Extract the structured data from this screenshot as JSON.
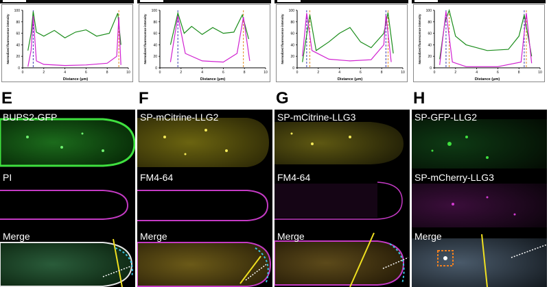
{
  "figure": {
    "scale_bars": [
      1,
      2,
      3,
      4
    ],
    "plots": [
      {
        "id": "plot-A",
        "chart_data": {
          "type": "line",
          "ylabel": "Normalized fluorescence intensity",
          "xlabel": "Distance (μm)",
          "xlim": [
            0,
            10
          ],
          "ylim": [
            0,
            100
          ],
          "x_ticks": [
            "0",
            "2",
            "4",
            "6",
            "8",
            "10"
          ],
          "y_ticks": [
            "0",
            "20",
            "40",
            "60",
            "80",
            "100"
          ],
          "series": [
            {
              "color": "#1a8c1a",
              "values": [
                [
                  0.5,
                  30
                ],
                [
                  0.8,
                  60
                ],
                [
                  1.0,
                  98
                ],
                [
                  1.3,
                  62
                ],
                [
                  2,
                  55
                ],
                [
                  3,
                  65
                ],
                [
                  4,
                  52
                ],
                [
                  5,
                  62
                ],
                [
                  6,
                  66
                ],
                [
                  7,
                  55
                ],
                [
                  8.2,
                  60
                ],
                [
                  9.0,
                  95
                ],
                [
                  9.3,
                  40
                ]
              ]
            },
            {
              "color": "#d020d0",
              "values": [
                [
                  0.5,
                  2
                ],
                [
                  0.8,
                  30
                ],
                [
                  1.0,
                  90
                ],
                [
                  1.3,
                  12
                ],
                [
                  2,
                  6
                ],
                [
                  4,
                  4
                ],
                [
                  6,
                  5
                ],
                [
                  8,
                  8
                ],
                [
                  8.9,
                  20
                ],
                [
                  9.1,
                  88
                ],
                [
                  9.3,
                  5
                ]
              ]
            }
          ],
          "markers": [
            1.0,
            9.1
          ]
        }
      },
      {
        "id": "plot-B",
        "chart_data": {
          "type": "line",
          "ylabel": "Normalized fluorescence intensity",
          "xlabel": "Distance (μm)",
          "xlim": [
            0,
            10
          ],
          "ylim": [
            0,
            100
          ],
          "x_ticks": [
            "0",
            "2",
            "4",
            "6",
            "8",
            "10"
          ],
          "y_ticks": [
            "0",
            "20",
            "40",
            "60",
            "80",
            "100"
          ],
          "series": [
            {
              "color": "#1a8c1a",
              "values": [
                [
                  1,
                  40
                ],
                [
                  1.7,
                  95
                ],
                [
                  2.3,
                  60
                ],
                [
                  3,
                  72
                ],
                [
                  4,
                  58
                ],
                [
                  5,
                  70
                ],
                [
                  6,
                  60
                ],
                [
                  7,
                  62
                ],
                [
                  7.8,
                  92
                ],
                [
                  8.4,
                  50
                ]
              ]
            },
            {
              "color": "#d020d0",
              "values": [
                [
                  1,
                  10
                ],
                [
                  1.7,
                  90
                ],
                [
                  2.4,
                  25
                ],
                [
                  4,
                  12
                ],
                [
                  6,
                  10
                ],
                [
                  7.3,
                  25
                ],
                [
                  7.9,
                  88
                ],
                [
                  8.5,
                  12
                ]
              ]
            }
          ],
          "markers": [
            1.7,
            7.9
          ]
        }
      },
      {
        "id": "plot-C",
        "chart_data": {
          "type": "line",
          "ylabel": "Normalized fluorescence intensity",
          "xlabel": "Distance (μm)",
          "xlim": [
            0,
            10
          ],
          "ylim": [
            0,
            100
          ],
          "x_ticks": [
            "0",
            "2",
            "4",
            "6",
            "8",
            "10"
          ],
          "y_ticks": [
            "0",
            "20",
            "40",
            "60",
            "80",
            "100"
          ],
          "series": [
            {
              "color": "#1a8c1a",
              "values": [
                [
                  0.5,
                  10
                ],
                [
                  1.2,
                  92
                ],
                [
                  1.8,
                  30
                ],
                [
                  3,
                  45
                ],
                [
                  4,
                  60
                ],
                [
                  5,
                  70
                ],
                [
                  6,
                  45
                ],
                [
                  7,
                  35
                ],
                [
                  8.2,
                  60
                ],
                [
                  8.6,
                  96
                ],
                [
                  9.1,
                  25
                ]
              ]
            },
            {
              "color": "#d020d0",
              "values": [
                [
                  0.5,
                  20
                ],
                [
                  0.9,
                  95
                ],
                [
                  1.4,
                  30
                ],
                [
                  3,
                  15
                ],
                [
                  5,
                  12
                ],
                [
                  7,
                  14
                ],
                [
                  8.2,
                  40
                ],
                [
                  8.4,
                  92
                ],
                [
                  8.9,
                  10
                ]
              ]
            }
          ],
          "markers": [
            0.9,
            1.2,
            8.4,
            8.6
          ]
        }
      },
      {
        "id": "plot-D",
        "chart_data": {
          "type": "line",
          "ylabel": "Normalized fluorescence intensity",
          "xlabel": "Distance (μm)",
          "xlim": [
            0,
            10
          ],
          "ylim": [
            0,
            100
          ],
          "x_ticks": [
            "0",
            "2",
            "4",
            "6",
            "8",
            "10"
          ],
          "y_ticks": [
            "0",
            "20",
            "40",
            "60",
            "80",
            "100"
          ],
          "series": [
            {
              "color": "#1a8c1a",
              "values": [
                [
                  0.5,
                  15
                ],
                [
                  1.0,
                  80
                ],
                [
                  1.4,
                  100
                ],
                [
                  2.0,
                  55
                ],
                [
                  3,
                  40
                ],
                [
                  5,
                  30
                ],
                [
                  7,
                  32
                ],
                [
                  8.0,
                  55
                ],
                [
                  8.5,
                  92
                ],
                [
                  9.2,
                  20
                ]
              ]
            },
            {
              "color": "#d020d0",
              "values": [
                [
                  0.5,
                  5
                ],
                [
                  1.1,
                  98
                ],
                [
                  1.7,
                  10
                ],
                [
                  3,
                  2
                ],
                [
                  6,
                  2
                ],
                [
                  8.2,
                  10
                ],
                [
                  8.7,
                  95
                ],
                [
                  9.2,
                  8
                ]
              ]
            }
          ],
          "markers": [
            1.1,
            1.4,
            8.5,
            8.7
          ]
        }
      }
    ],
    "columns": [
      {
        "letter": "E",
        "labels": [
          "BUPS2-GFP",
          "PI",
          "Merge"
        ]
      },
      {
        "letter": "F",
        "labels": [
          "SP-mCitrine-LLG2",
          "FM4-64",
          "Merge"
        ]
      },
      {
        "letter": "G",
        "labels": [
          "SP-mCitrine-LLG3",
          "FM4-64",
          "Merge"
        ]
      },
      {
        "letter": "H",
        "labels": [
          "SP-GFP-LLG2",
          "SP-mCherry-LLG3",
          "Merge"
        ]
      }
    ],
    "colors": {
      "green": "#2bd12b",
      "magenta": "#d23cd2",
      "yellow": "#e0d21c",
      "cyan_dashed": "#3bc6e6",
      "white": "#ffffff"
    }
  }
}
